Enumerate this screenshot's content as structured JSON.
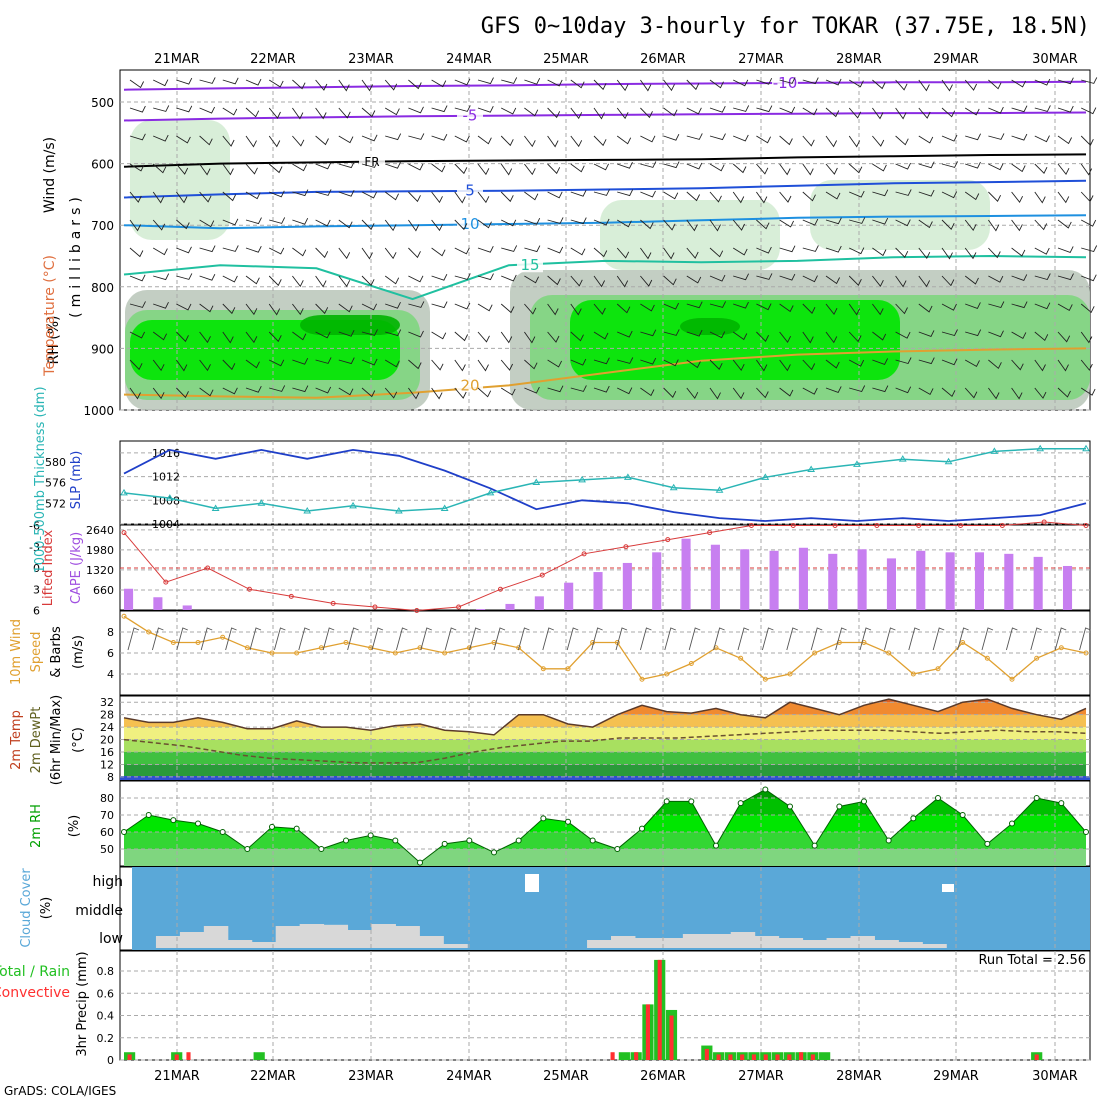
{
  "title": "GFS 0~10day 3-hourly for TOKAR (37.75E, 18.5N)",
  "credit": "GrADS: COLA/IGES",
  "dates": [
    "21MAR",
    "22MAR",
    "23MAR",
    "24MAR",
    "25MAR",
    "26MAR",
    "27MAR",
    "28MAR",
    "29MAR",
    "30MAR"
  ],
  "colors": {
    "rh_dark": "#00b400",
    "rh_mid": "#00e600",
    "rh_light": "#7fd67f",
    "rh_pale": "#d4ecd4",
    "rh_grey": "#bcc9bc",
    "slp": "#1f3fc8",
    "thickness": "#2ab5b5",
    "li": "#d83a3a",
    "cape": "#c77ff0",
    "wind10": "#e0a030",
    "cloud": "#5aa8d8",
    "precip_total": "#22c022",
    "precip_conv": "#ff3030"
  },
  "labels": {
    "p1_wind": "Wind (m/s)",
    "p1_temp": "Temperature (°C)",
    "p1_rh": "RH (%)",
    "p1_mb": "(millibars)",
    "p2_thick": "1000-500mb Thickness (dm)",
    "p2_slp": "SLP (mb)",
    "p3_li": "Lifted Index",
    "p3_cape": "CAPE (J/kg)",
    "p4_a": "10m Wind",
    "p4_b": "Speed",
    "p4_c": "& Barbs",
    "p4_unit": "(m/s)",
    "p5_a": "2m Temp",
    "p5_b": "2m DewPt",
    "p5_c": "(6hr Min/Max)",
    "p5_unit": "(°C)",
    "p6_a": "2m RH",
    "p6_unit": "(%)",
    "p7_a": "Cloud Cover",
    "p7_unit": "(%)",
    "p7_high": "high",
    "p7_middle": "middle",
    "p7_low": "low",
    "p8_a": "Total / Rain",
    "p8_b": "Convective",
    "p8_c": "3hr Precip (mm)",
    "run_total": "Run Total = 2.56"
  },
  "chart_data": [
    {
      "type": "heatmap",
      "name": "pressure-cross-section",
      "y_ticks": [
        500,
        600,
        700,
        800,
        900,
        1000
      ],
      "contour_labels": [
        "-10",
        "-5",
        "FR",
        "5",
        "10",
        "15",
        "20"
      ],
      "isotherms": [
        {
          "label": "-10",
          "p": [
            480,
            478,
            476,
            474,
            473,
            471,
            470,
            469,
            468,
            468,
            467
          ]
        },
        {
          "label": "-5",
          "p": [
            530,
            527,
            525,
            523,
            522,
            521,
            520,
            519,
            518,
            518,
            517
          ]
        },
        {
          "label": "FR",
          "p": [
            605,
            600,
            598,
            596,
            595,
            594,
            593,
            590,
            588,
            586,
            585
          ]
        },
        {
          "label": "5",
          "p": [
            655,
            650,
            646,
            645,
            644,
            642,
            640,
            636,
            632,
            630,
            628
          ]
        },
        {
          "label": "10",
          "p": [
            700,
            705,
            702,
            700,
            698,
            696,
            692,
            688,
            686,
            685,
            684
          ]
        },
        {
          "label": "15",
          "p": [
            780,
            765,
            770,
            820,
            765,
            758,
            760,
            758,
            752,
            750,
            752
          ]
        },
        {
          "label": "20",
          "p": [
            975,
            978,
            980,
            972,
            960,
            940,
            920,
            910,
            905,
            902,
            900
          ]
        }
      ]
    },
    {
      "type": "line",
      "name": "slp-thickness",
      "thickness_ticks": [
        572,
        576,
        580
      ],
      "slp_ticks": [
        1004,
        1008,
        1012,
        1016
      ],
      "slp_mb": [
        1012.5,
        1016.5,
        1015,
        1016.5,
        1015,
        1016.5,
        1015.5,
        1013,
        1010,
        1006.5,
        1008,
        1007.5,
        1006,
        1005,
        1004.5,
        1005,
        1004.5,
        1005,
        1004.5,
        1005,
        1005.5,
        1007.5
      ],
      "thickness_dm": [
        574,
        573,
        571,
        572,
        570.5,
        571.5,
        570.5,
        571,
        574,
        576,
        576.5,
        577,
        575,
        574.5,
        577,
        578.5,
        579.5,
        580.5,
        580,
        582,
        582.5,
        582.5
      ]
    },
    {
      "type": "bar",
      "name": "cape-lifted-index",
      "li_ticks": [
        -6,
        -3,
        0,
        3,
        6
      ],
      "cape_ticks": [
        660,
        1320,
        1980,
        2640
      ],
      "lifted_index": [
        -5,
        2,
        0,
        3,
        4,
        5,
        5.5,
        6,
        5.5,
        3,
        1,
        -2,
        -3,
        -4,
        -5,
        -6,
        -6,
        -6,
        -6,
        -6,
        -6,
        -6,
        -6.5,
        -6
      ],
      "cape_jkg": [
        700,
        420,
        150,
        0,
        0,
        0,
        0,
        0,
        0,
        0,
        0,
        0,
        30,
        200,
        450,
        900,
        1250,
        1550,
        1900,
        2350,
        2150,
        2000,
        1950,
        2050,
        1850,
        2000,
        1700,
        1950,
        1900,
        1900,
        1850,
        1750,
        1450
      ]
    },
    {
      "type": "line",
      "name": "10m-wind-speed",
      "y_ticks": [
        4,
        6,
        8
      ],
      "speed_ms": [
        9.5,
        8,
        7,
        7,
        7.5,
        6.5,
        6,
        6,
        6.5,
        7,
        6.5,
        6,
        6.5,
        6,
        6.5,
        7,
        6.5,
        4.5,
        4.5,
        7,
        7,
        3.5,
        4,
        5,
        6.5,
        5.5,
        3.5,
        4,
        6,
        7,
        7,
        6,
        4,
        4.5,
        7,
        5.5,
        3.5,
        5.5,
        6.5,
        6
      ]
    },
    {
      "type": "area",
      "name": "2m-temp-dewpoint",
      "y_ticks": [
        8,
        12,
        16,
        20,
        24,
        28,
        32
      ],
      "temp_c": [
        27,
        25.5,
        25.5,
        27,
        25.5,
        23.5,
        23.5,
        26,
        24,
        24,
        23,
        24.5,
        25,
        23,
        22.5,
        21.5,
        28,
        28,
        25,
        24,
        28,
        31,
        29,
        28.5,
        30,
        28,
        27,
        32,
        30,
        28,
        31,
        33,
        31,
        29,
        32,
        33,
        30,
        28,
        26.5,
        30
      ],
      "dewpoint_c": [
        20,
        19,
        18,
        16.5,
        15,
        14,
        13.5,
        13,
        12.5,
        12.5,
        12.5,
        14,
        16,
        17.5,
        18.5,
        19.5,
        19.5,
        20.5,
        20.5,
        20.5,
        21,
        21.5,
        22,
        22.5,
        23,
        23,
        23,
        22.5,
        22,
        22.5,
        23,
        22.5,
        22.5,
        22
      ]
    },
    {
      "type": "area",
      "name": "2m-rh",
      "y_ticks": [
        50,
        60,
        70,
        80
      ],
      "rh_pct": [
        60,
        70,
        67,
        65,
        60,
        50,
        63,
        62,
        50,
        55,
        58,
        55,
        42,
        53,
        55,
        48,
        55,
        68,
        66,
        55,
        50,
        62,
        78,
        78,
        52,
        77,
        85,
        75,
        52,
        75,
        78,
        55,
        68,
        80,
        70,
        53,
        65,
        80,
        77,
        60
      ]
    },
    {
      "type": "heatmap",
      "name": "cloud-cover",
      "rows": [
        "high",
        "middle",
        "low"
      ],
      "low_pct": [
        0,
        30,
        40,
        55,
        20,
        15,
        55,
        60,
        58,
        45,
        60,
        55,
        30,
        10,
        0,
        0,
        0,
        0,
        0,
        20,
        30,
        25,
        25,
        35,
        35,
        40,
        30,
        25,
        20,
        25,
        30,
        20,
        15,
        10,
        0,
        0,
        0,
        0,
        0,
        0
      ]
    },
    {
      "type": "bar",
      "name": "3hr-precip",
      "y_ticks": [
        0,
        0.2,
        0.4,
        0.6,
        0.8
      ],
      "run_total_mm": 2.56,
      "total_mm": [
        0.07,
        0,
        0,
        0,
        0.07,
        0,
        0,
        0,
        0,
        0,
        0,
        0.07,
        0,
        0,
        0,
        0,
        0,
        0,
        0,
        0,
        0,
        0,
        0,
        0,
        0,
        0,
        0,
        0,
        0,
        0,
        0,
        0,
        0,
        0,
        0,
        0,
        0,
        0,
        0,
        0,
        0,
        0,
        0.07,
        0.07,
        0.5,
        0.9,
        0.45,
        0,
        0,
        0.13,
        0.07,
        0.07,
        0.07,
        0.07,
        0.07,
        0.07,
        0.07,
        0.07,
        0.07,
        0.07,
        0,
        0,
        0,
        0,
        0,
        0,
        0,
        0,
        0,
        0,
        0,
        0,
        0,
        0,
        0,
        0,
        0,
        0.07,
        0,
        0,
        0,
        0
      ],
      "conv_mm": [
        0.05,
        0,
        0,
        0,
        0.05,
        0.07,
        0,
        0,
        0,
        0,
        0,
        0,
        0,
        0,
        0,
        0,
        0,
        0,
        0,
        0,
        0,
        0,
        0,
        0,
        0,
        0,
        0,
        0,
        0,
        0,
        0,
        0,
        0,
        0,
        0,
        0,
        0,
        0,
        0,
        0,
        0,
        0.07,
        0,
        0.07,
        0.5,
        0.9,
        0.4,
        0,
        0,
        0.1,
        0.05,
        0.05,
        0.05,
        0.05,
        0.05,
        0.05,
        0.05,
        0.07,
        0.05,
        0,
        0,
        0,
        0,
        0,
        0,
        0,
        0,
        0,
        0,
        0,
        0,
        0,
        0,
        0,
        0,
        0,
        0,
        0.05,
        0,
        0,
        0,
        0
      ]
    }
  ]
}
